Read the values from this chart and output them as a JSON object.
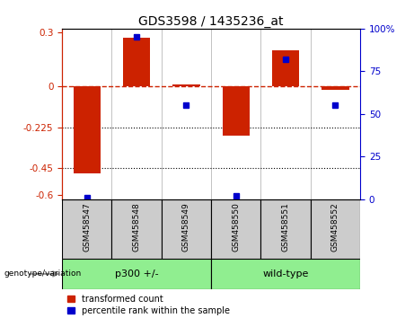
{
  "title": "GDS3598 / 1435236_at",
  "samples": [
    "GSM458547",
    "GSM458548",
    "GSM458549",
    "GSM458550",
    "GSM458551",
    "GSM458552"
  ],
  "red_values": [
    -0.48,
    0.27,
    0.01,
    -0.27,
    0.2,
    -0.02
  ],
  "blue_values": [
    1.0,
    95.0,
    55.0,
    2.0,
    82.0,
    55.0
  ],
  "groups": [
    {
      "label": "p300 +/-",
      "indices": [
        0,
        1,
        2
      ],
      "color": "#90EE90"
    },
    {
      "label": "wild-type",
      "indices": [
        3,
        4,
        5
      ],
      "color": "#90EE90"
    }
  ],
  "group_label": "genotype/variation",
  "left_ylim": [
    -0.62,
    0.32
  ],
  "right_ylim": [
    0,
    100
  ],
  "left_yticks": [
    -0.6,
    -0.45,
    -0.225,
    0,
    0.3
  ],
  "right_yticks": [
    0,
    25,
    50,
    75,
    100
  ],
  "left_yticklabels": [
    "-0.6",
    "-0.45",
    "-0.225",
    "0",
    "0.3"
  ],
  "right_yticklabels": [
    "0",
    "25",
    "50",
    "75",
    "100%"
  ],
  "bar_color": "#CC2200",
  "dot_color": "#0000CC",
  "bg_color": "#FFFFFF",
  "hline_color": "#CC2200",
  "dotted_line_color": "#000000",
  "bar_width": 0.55,
  "sample_box_color": "#CCCCCC",
  "legend_red_label": "transformed count",
  "legend_blue_label": "percentile rank within the sample"
}
